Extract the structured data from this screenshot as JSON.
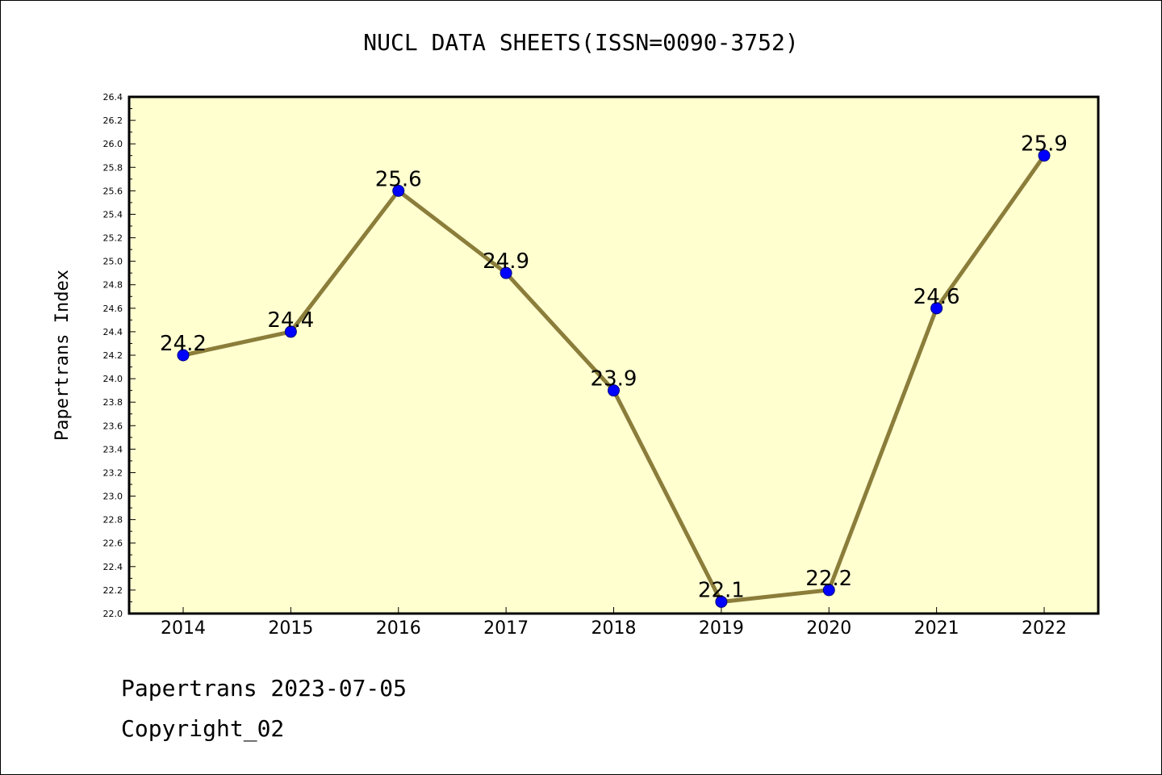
{
  "chart_data": {
    "type": "line",
    "title": "NUCL DATA SHEETS(ISSN=0090-3752)",
    "xlabel": "",
    "ylabel": "Papertrans Index",
    "categories": [
      "2014",
      "2015",
      "2016",
      "2017",
      "2018",
      "2019",
      "2020",
      "2021",
      "2022"
    ],
    "values": [
      24.2,
      24.4,
      25.6,
      24.9,
      23.9,
      22.1,
      22.2,
      24.6,
      25.9
    ],
    "data_labels": [
      "24.2",
      "24.4",
      "25.6",
      "24.9",
      "23.9",
      "22.1",
      "22.2",
      "24.6",
      "25.9"
    ],
    "ylim": [
      22.0,
      26.4
    ],
    "y_ticks": [
      "22.0",
      "22.2",
      "22.4",
      "22.6",
      "22.8",
      "23.0",
      "23.2",
      "23.4",
      "23.6",
      "23.8",
      "24.0",
      "24.2",
      "24.4",
      "24.6",
      "24.8",
      "25.0",
      "25.2",
      "25.4",
      "25.6",
      "25.8",
      "26.0",
      "26.2",
      "26.4"
    ],
    "grid": false,
    "colors": {
      "plot_background": "#FFFFD0",
      "line": "#8B7D3A",
      "marker": "#0000FF"
    }
  },
  "footer": {
    "date_text": "Papertrans 2023-07-05",
    "copyright_text": "Copyright_02"
  }
}
